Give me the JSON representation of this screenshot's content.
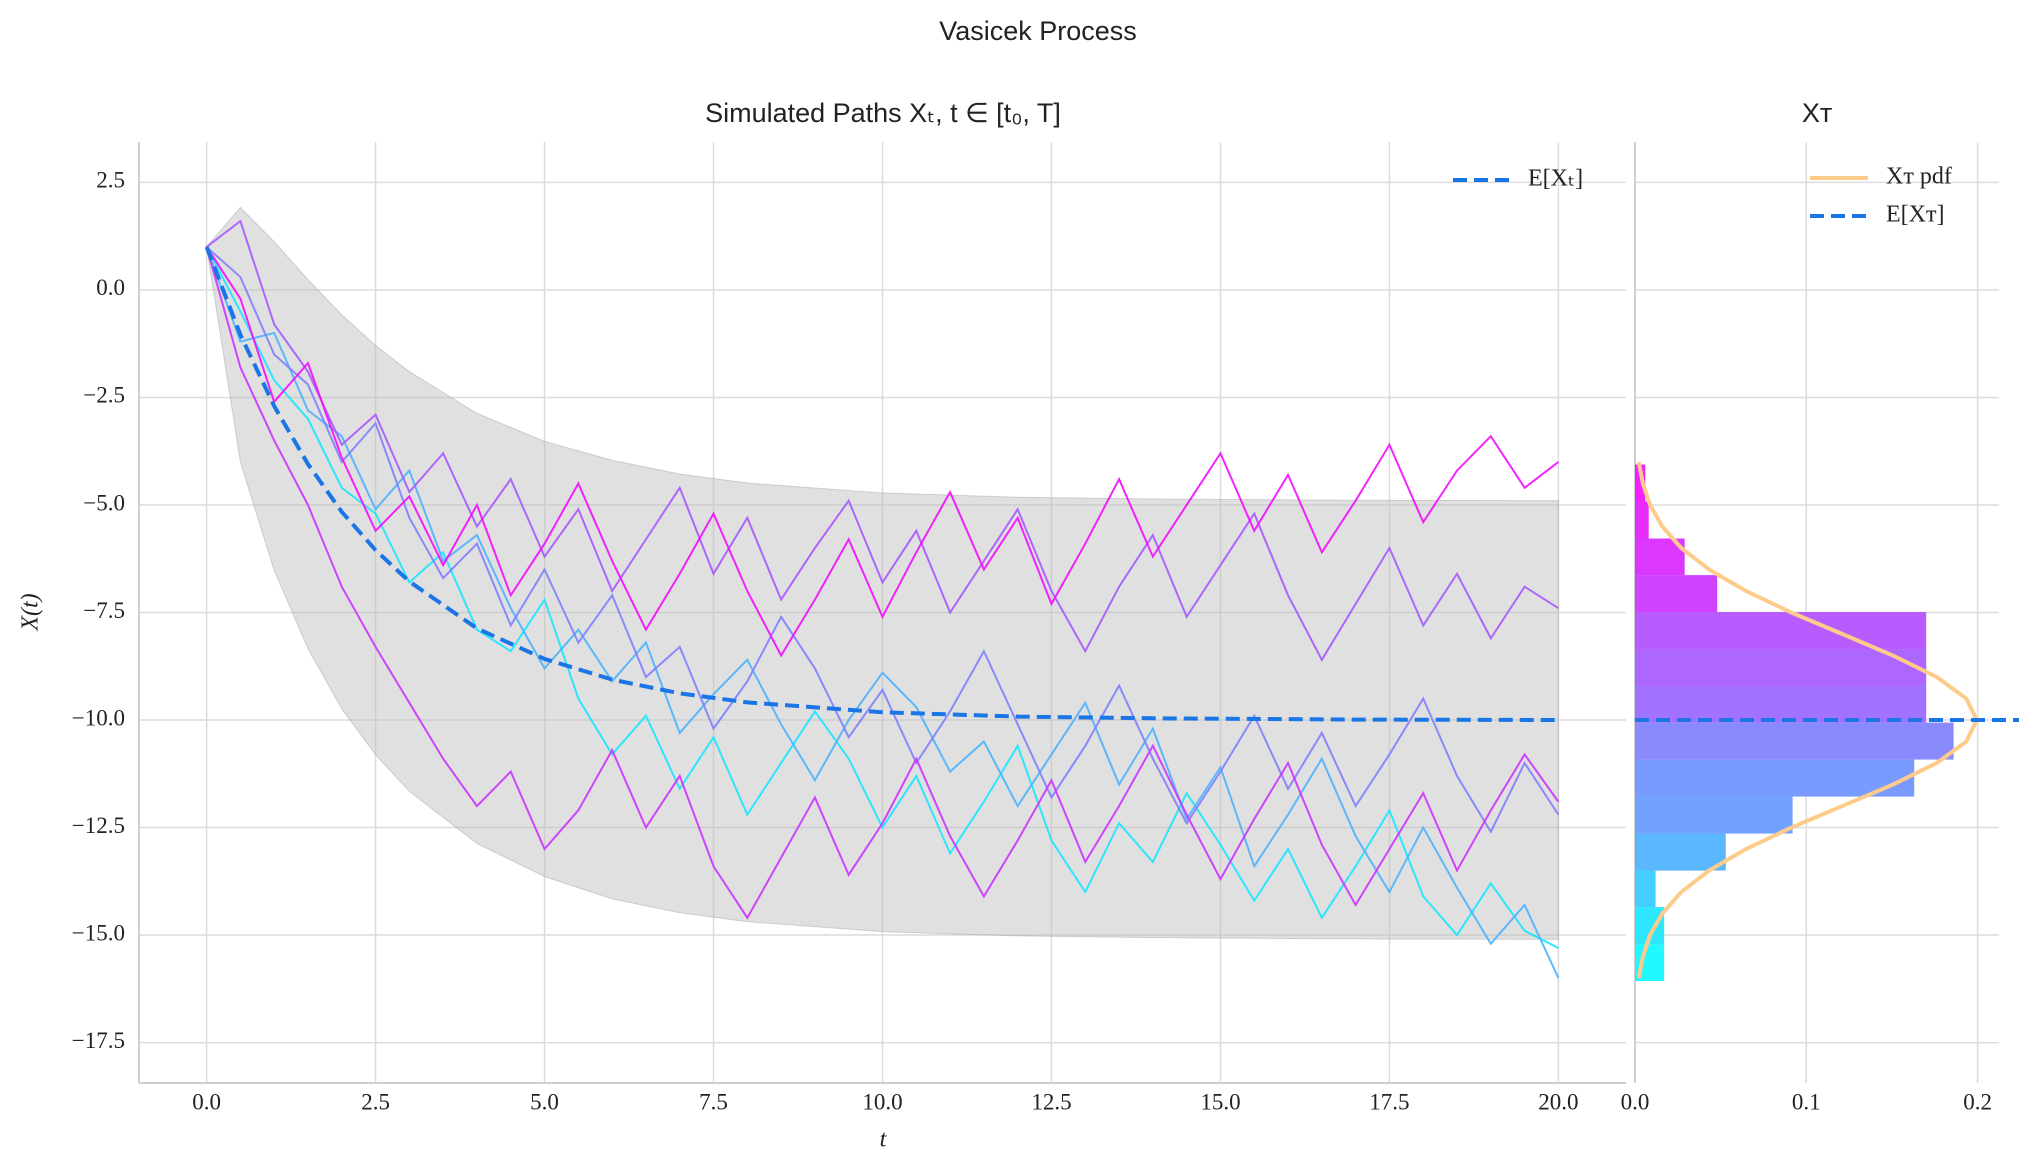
{
  "title": "Vasicek Process",
  "chart_data": [
    {
      "type": "line",
      "title": "Simulated Paths Xₜ, t ∈ [t₀, T]",
      "x_label": "t",
      "y_label": "X(t)",
      "xlim": [
        -1,
        21
      ],
      "ylim": [
        -18.44,
        3.44
      ],
      "xticks": [
        {
          "value": 0,
          "label": "0.0"
        },
        {
          "value": 2.5,
          "label": "2.5"
        },
        {
          "value": 5,
          "label": "5.0"
        },
        {
          "value": 7.5,
          "label": "7.5"
        },
        {
          "value": 10,
          "label": "10.0"
        },
        {
          "value": 12.5,
          "label": "12.5"
        },
        {
          "value": 15,
          "label": "15.0"
        },
        {
          "value": 17.5,
          "label": "17.5"
        },
        {
          "value": 20,
          "label": "20.0"
        }
      ],
      "yticks": [
        {
          "value": 2.5,
          "label": "2.5"
        },
        {
          "value": 0,
          "label": "0.0"
        },
        {
          "value": -2.5,
          "label": "−2.5"
        },
        {
          "value": -5,
          "label": "−5.0"
        },
        {
          "value": -7.5,
          "label": "−7.5"
        },
        {
          "value": -10,
          "label": "−10.0"
        },
        {
          "value": -12.5,
          "label": "−12.5"
        },
        {
          "value": -15,
          "label": "−15.0"
        },
        {
          "value": -17.5,
          "label": "−17.5"
        }
      ],
      "grid": true,
      "x": [
        0,
        0.5,
        1,
        1.5,
        2,
        2.5,
        3,
        3.5,
        4,
        4.5,
        5,
        5.5,
        6,
        6.5,
        7,
        7.5,
        8,
        8.5,
        9,
        9.5,
        10,
        10.5,
        11,
        11.5,
        12,
        12.5,
        13,
        13.5,
        14,
        14.5,
        15,
        15.5,
        16,
        16.5,
        17,
        17.5,
        18,
        18.5,
        19,
        19.5,
        20
      ],
      "series": [
        {
          "color": "#1ae5ff",
          "values": [
            1,
            -0.5,
            -2.1,
            -3.0,
            -4.6,
            -5.2,
            -6.8,
            -6.1,
            -7.9,
            -8.4,
            -7.2,
            -9.5,
            -10.8,
            -9.9,
            -11.6,
            -10.4,
            -12.2,
            -11.0,
            -9.8,
            -10.9,
            -12.5,
            -11.3,
            -13.1,
            -11.9,
            -10.6,
            -12.8,
            -14.0,
            -12.4,
            -13.3,
            -11.7,
            -12.9,
            -14.2,
            -13.0,
            -14.6,
            -13.4,
            -12.1,
            -14.1,
            -15.0,
            -13.8,
            -14.9,
            -15.3
          ]
        },
        {
          "color": "#4db2ff",
          "values": [
            1,
            -1.2,
            -1.0,
            -2.8,
            -3.4,
            -5.1,
            -4.2,
            -6.3,
            -5.7,
            -7.4,
            -8.8,
            -7.9,
            -9.1,
            -8.2,
            -10.3,
            -9.4,
            -8.6,
            -10.1,
            -11.4,
            -10.0,
            -8.9,
            -9.7,
            -11.2,
            -10.5,
            -12.0,
            -10.8,
            -9.6,
            -11.5,
            -10.2,
            -12.3,
            -11.1,
            -13.4,
            -12.2,
            -10.9,
            -12.7,
            -14.0,
            -12.5,
            -13.9,
            -15.2,
            -14.3,
            -16.0
          ]
        },
        {
          "color": "#8080ff",
          "values": [
            1,
            0.3,
            -1.5,
            -2.2,
            -4.0,
            -3.1,
            -5.3,
            -6.7,
            -5.9,
            -7.8,
            -6.5,
            -8.2,
            -7.1,
            -9.0,
            -8.3,
            -10.2,
            -9.1,
            -7.6,
            -8.8,
            -10.4,
            -9.3,
            -11.0,
            -9.8,
            -8.4,
            -10.1,
            -11.8,
            -10.6,
            -9.2,
            -10.9,
            -12.4,
            -11.2,
            -9.9,
            -11.6,
            -10.3,
            -12.0,
            -10.8,
            -9.5,
            -11.3,
            -12.6,
            -11.0,
            -12.2
          ]
        },
        {
          "color": "#a659ff",
          "values": [
            1,
            1.6,
            -0.8,
            -1.9,
            -3.6,
            -2.9,
            -4.7,
            -3.8,
            -5.5,
            -4.4,
            -6.2,
            -5.1,
            -7.0,
            -5.8,
            -4.6,
            -6.6,
            -5.3,
            -7.2,
            -6.0,
            -4.9,
            -6.8,
            -5.6,
            -7.5,
            -6.3,
            -5.1,
            -7.0,
            -8.4,
            -6.9,
            -5.7,
            -7.6,
            -6.4,
            -5.2,
            -7.1,
            -8.6,
            -7.3,
            -6.0,
            -7.8,
            -6.6,
            -8.1,
            -6.9,
            -7.4
          ]
        },
        {
          "color": "#cc33ff",
          "values": [
            1,
            -1.8,
            -3.5,
            -5.0,
            -6.9,
            -8.3,
            -9.6,
            -10.9,
            -12.0,
            -11.2,
            -13.0,
            -12.1,
            -10.7,
            -12.5,
            -11.3,
            -13.4,
            -14.6,
            -13.2,
            -11.8,
            -13.6,
            -12.4,
            -10.9,
            -12.7,
            -14.1,
            -12.8,
            -11.4,
            -13.3,
            -12.0,
            -10.6,
            -12.2,
            -13.7,
            -12.3,
            -11.0,
            -12.9,
            -14.3,
            -13.0,
            -11.7,
            -13.5,
            -12.1,
            -10.8,
            -11.9
          ]
        },
        {
          "color": "#f20dff",
          "values": [
            1,
            -0.2,
            -2.6,
            -1.7,
            -3.9,
            -5.6,
            -4.8,
            -6.4,
            -5.0,
            -7.1,
            -5.9,
            -4.5,
            -6.3,
            -7.9,
            -6.6,
            -5.2,
            -7.0,
            -8.5,
            -7.2,
            -5.8,
            -7.6,
            -6.1,
            -4.7,
            -6.5,
            -5.3,
            -7.3,
            -5.9,
            -4.4,
            -6.2,
            -5.0,
            -3.8,
            -5.6,
            -4.3,
            -6.1,
            -4.9,
            -3.6,
            -5.4,
            -4.2,
            -3.4,
            -4.6,
            -4.0
          ]
        }
      ],
      "band": {
        "color": "#bbbbbb",
        "x": [
          0,
          0.5,
          1,
          1.5,
          2,
          2.5,
          3,
          4,
          5,
          6,
          7,
          8,
          10,
          12,
          14,
          17,
          20
        ],
        "upper": [
          1,
          1.92,
          1.12,
          0.24,
          -0.58,
          -1.29,
          -1.9,
          -2.87,
          -3.52,
          -3.96,
          -4.28,
          -4.49,
          -4.72,
          -4.82,
          -4.86,
          -4.89,
          -4.9
        ],
        "lower": [
          1,
          -4.0,
          -6.52,
          -8.34,
          -9.74,
          -10.81,
          -11.66,
          -12.87,
          -13.64,
          -14.16,
          -14.48,
          -14.69,
          -14.92,
          -15.02,
          -15.06,
          -15.09,
          -15.1
        ]
      },
      "mean": {
        "name": "E[Xₜ]",
        "color": "#1a75e6",
        "x": [
          0,
          0.5,
          1,
          1.5,
          2,
          2.5,
          3,
          4,
          5,
          6,
          7,
          8,
          10,
          12,
          14,
          17,
          20
        ],
        "values": [
          1,
          -1.04,
          -2.7,
          -4.05,
          -5.16,
          -6.05,
          -6.78,
          -7.87,
          -8.58,
          -9.06,
          -9.38,
          -9.59,
          -9.82,
          -9.92,
          -9.96,
          -9.99,
          -10.0
        ]
      },
      "legend": "upper right"
    },
    {
      "type": "histogram",
      "orientation": "horizontal",
      "title": "Xᴛ",
      "xlim": [
        0,
        0.2125
      ],
      "ylim": [
        -18.44,
        3.44
      ],
      "xticks": [
        {
          "value": 0,
          "label": "0.0"
        },
        {
          "value": 0.1,
          "label": "0.1"
        },
        {
          "value": 0.2,
          "label": "0.2"
        }
      ],
      "grid": true,
      "bins": [
        -16.07,
        -15.21,
        -14.35,
        -13.5,
        -12.64,
        -11.78,
        -10.92,
        -10.06,
        -9.21,
        -8.35,
        -7.49,
        -6.63,
        -5.78,
        -4.92,
        -4.06
      ],
      "values": [
        0.017,
        0.017,
        0.012,
        0.053,
        0.092,
        0.163,
        0.186,
        0.17,
        0.17,
        0.17,
        0.048,
        0.029,
        0.008,
        0.006
      ],
      "colors": [
        "#0ff7ff",
        "#1ae5ff",
        "#33ccff",
        "#4db2ff",
        "#6699ff",
        "#6e91ff",
        "#8080ff",
        "#9966ff",
        "#a659ff",
        "#b24dff",
        "#cc33ff",
        "#d926ff",
        "#e619ff",
        "#f20dff"
      ],
      "pdf": {
        "name": "Xᴛ pdf",
        "color": "#fdcb8a",
        "y": [
          -16,
          -15.5,
          -15,
          -14.5,
          -14,
          -13.5,
          -13,
          -12.5,
          -12,
          -11.5,
          -11,
          -10.5,
          -10,
          -9.5,
          -9,
          -8.5,
          -8,
          -7.5,
          -7,
          -6.5,
          -6,
          -5.5,
          -5,
          -4.5,
          -4
        ],
        "density": [
          0.0022,
          0.0046,
          0.0088,
          0.0159,
          0.027,
          0.0432,
          0.0648,
          0.0913,
          0.121,
          0.1506,
          0.1761,
          0.1934,
          0.1995,
          0.1934,
          0.1761,
          0.1506,
          0.121,
          0.0913,
          0.0648,
          0.0432,
          0.027,
          0.0159,
          0.0088,
          0.0046,
          0.0022
        ]
      },
      "mean": {
        "name": "E[Xᴛ]",
        "color": "#1a75e6",
        "value": -10
      },
      "legend": "upper right"
    }
  ]
}
